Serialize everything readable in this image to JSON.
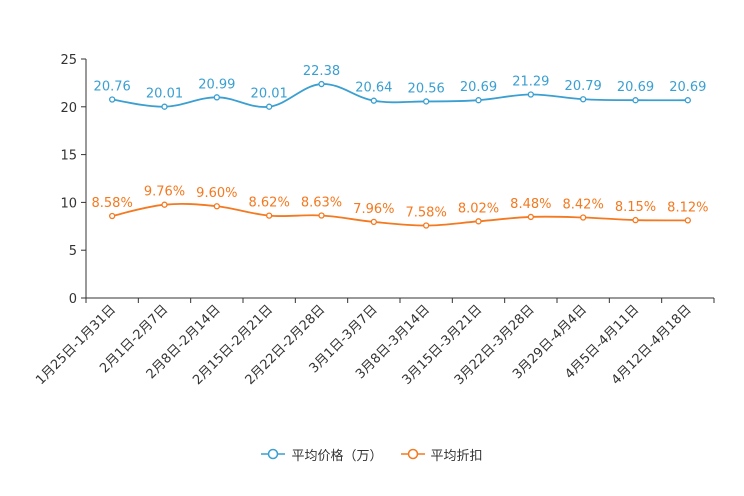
{
  "chart_data": {
    "type": "line",
    "title": "",
    "xlabel": "",
    "ylabel": "",
    "ylim": [
      0,
      25
    ],
    "yticks": [
      0,
      5,
      10,
      15,
      20,
      25
    ],
    "categories": [
      "1月25日-1月31日",
      "2月1日-2月7日",
      "2月8日-2月14日",
      "2月15日-2月21日",
      "2月22日-2月28日",
      "3月1日-3月7日",
      "3月8日-3月14日",
      "3月15日-3月21日",
      "3月22日-3月28日",
      "3月29日-4月4日",
      "4月5日-4月11日",
      "4月12日-4月18日"
    ],
    "series": [
      {
        "name": "平均价格（万）",
        "color": "#3a9fd1",
        "values": [
          20.76,
          20.01,
          20.99,
          20.01,
          22.38,
          20.64,
          20.56,
          20.69,
          21.29,
          20.79,
          20.69,
          20.69
        ],
        "labels": [
          "20.76",
          "20.01",
          "20.99",
          "20.01",
          "22.38",
          "20.64",
          "20.56",
          "20.69",
          "21.29",
          "20.79",
          "20.69",
          "20.69"
        ]
      },
      {
        "name": "平均折扣",
        "color": "#f47920",
        "values": [
          8.58,
          9.76,
          9.6,
          8.62,
          8.63,
          7.96,
          7.58,
          8.02,
          8.48,
          8.42,
          8.15,
          8.12
        ],
        "labels": [
          "8.58%",
          "9.76%",
          "9.60%",
          "8.62%",
          "8.63%",
          "7.96%",
          "7.58%",
          "8.02%",
          "8.48%",
          "8.42%",
          "8.15%",
          "8.12%"
        ]
      }
    ],
    "legend_position": "bottom-center"
  }
}
